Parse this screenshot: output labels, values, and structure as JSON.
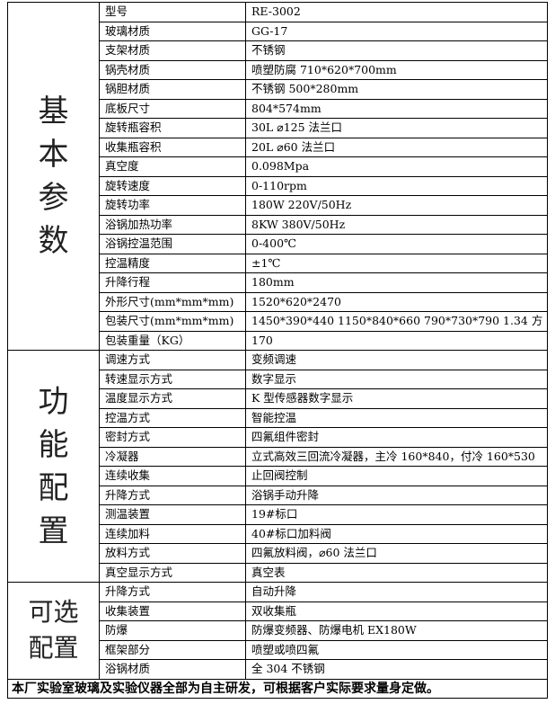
{
  "sections": [
    {
      "title": [
        "基",
        "本",
        "参",
        "数"
      ],
      "rows": [
        [
          "型号",
          "RE-3002"
        ],
        [
          "玻璃材质",
          "GG-17"
        ],
        [
          "支架材质",
          "不锈钢"
        ],
        [
          "锅壳材质",
          "喷塑防腐        710*620*700mm"
        ],
        [
          "锅胆材质",
          "不锈钢    500*280mm"
        ],
        [
          "底板尺寸",
          "804*574mm"
        ],
        [
          "旋转瓶容积",
          "30L      ⌀125 法兰口"
        ],
        [
          "收集瓶容积",
          "20L      ⌀60 法兰口"
        ],
        [
          "真空度",
          "0.098Mpa"
        ],
        [
          "旋转速度",
          "0-110rpm"
        ],
        [
          "旋转功率",
          "180W      220V/50Hz"
        ],
        [
          "浴锅加热功率",
          "8KW       380V/50Hz"
        ],
        [
          "浴锅控温范围",
          "0-400℃"
        ],
        [
          "控温精度",
          "±1℃"
        ],
        [
          "升降行程",
          "180mm"
        ],
        [
          "外形尺寸(mm*mm*mm)",
          "1520*620*2470"
        ],
        [
          "包装尺寸(mm*mm*mm)",
          "1450*390*440   1150*840*660   790*730*790 1.34 方"
        ],
        [
          "包装重量（KG）",
          "170"
        ]
      ]
    },
    {
      "title": [
        "功",
        "能",
        "配",
        "置"
      ],
      "rows": [
        [
          "调速方式",
          "变频调速"
        ],
        [
          "转速显示方式",
          "数字显示"
        ],
        [
          "温度显示方式",
          "K 型传感器数字显示"
        ],
        [
          "控温方式",
          "智能控温"
        ],
        [
          "密封方式",
          "四氟组件密封"
        ],
        [
          "冷凝器",
          "立式高效三回流冷凝器，主冷 160*840，付冷 160*530"
        ],
        [
          "连续收集",
          "止回阀控制"
        ],
        [
          "升降方式",
          "浴锅手动升降"
        ],
        [
          "测温装置",
          "19#标口"
        ],
        [
          "连续加料",
          "40#标口加料阀"
        ],
        [
          "放料方式",
          "四氟放料阀，⌀60 法兰口"
        ],
        [
          "真空显示方式",
          "真空表"
        ]
      ]
    },
    {
      "title": [
        "可选",
        "配置"
      ],
      "rows": [
        [
          "升降方式",
          "自动升降"
        ],
        [
          "收集装置",
          "双收集瓶"
        ],
        [
          "防爆",
          "防爆变频器、防爆电机 EX180W"
        ],
        [
          "框架部分",
          "喷塑或喷四氟"
        ],
        [
          "浴锅材质",
          "全 304 不锈钢"
        ]
      ]
    }
  ],
  "footer": "本厂实验室玻璃及实验仪器全部为自主研发，可根据客户实际要求量身定做。"
}
